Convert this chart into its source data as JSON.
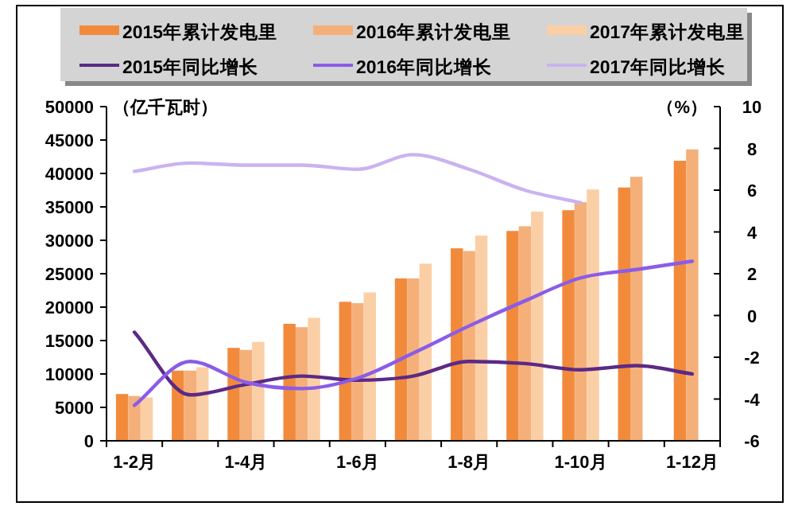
{
  "chart_data": {
    "type": "bar",
    "categories": [
      "1-2月",
      null,
      "1-4月",
      null,
      "1-6月",
      null,
      "1-8月",
      null,
      "1-10月",
      null,
      "1-12月"
    ],
    "ylabel": "（亿千瓦时）",
    "y2label": "（%）",
    "ylim": [
      0,
      50000
    ],
    "yticks": [
      0,
      5000,
      10000,
      15000,
      20000,
      25000,
      30000,
      35000,
      40000,
      45000,
      50000
    ],
    "y2lim": [
      -6,
      10
    ],
    "y2ticks": [
      -6,
      -4,
      -2,
      0,
      2,
      4,
      6,
      8,
      10
    ],
    "legend": "top",
    "grid": false,
    "series": [
      {
        "name": "2015年累计发电里",
        "color": "#f28a3c",
        "values": [
          7000,
          10500,
          13900,
          17500,
          20800,
          24300,
          28800,
          31400,
          34500,
          37900,
          41900
        ]
      },
      {
        "name": "2016年累计发电里",
        "color": "#f5b07a",
        "values": [
          6700,
          10500,
          13600,
          17000,
          20600,
          24300,
          28400,
          32100,
          35700,
          39500,
          43600
        ]
      },
      {
        "name": "2017年累计发电里",
        "color": "#fbcfa6",
        "values": [
          6500,
          11000,
          14800,
          18400,
          22200,
          26500,
          30700,
          34300,
          37600,
          null,
          null
        ]
      },
      {
        "name": "2015年同比增长",
        "type": "line",
        "axis": "y2",
        "color": "#5b2a86",
        "values": [
          -0.8,
          -3.8,
          -3.3,
          -2.9,
          -3.1,
          -2.9,
          -2.2,
          -2.3,
          -2.6,
          -2.4,
          -2.8
        ]
      },
      {
        "name": "2016年同比增长",
        "type": "line",
        "axis": "y2",
        "color": "#8a5ce8",
        "values": [
          -4.3,
          -2.2,
          -3.2,
          -3.5,
          -3.0,
          -1.8,
          -0.5,
          0.7,
          1.8,
          2.2,
          2.6
        ]
      },
      {
        "name": "2017年同比增长",
        "type": "line",
        "axis": "y2",
        "color": "#c9b3f0",
        "values": [
          6.9,
          7.3,
          7.2,
          7.2,
          7.0,
          7.7,
          7.0,
          6.0,
          5.4,
          null,
          null
        ]
      }
    ]
  }
}
